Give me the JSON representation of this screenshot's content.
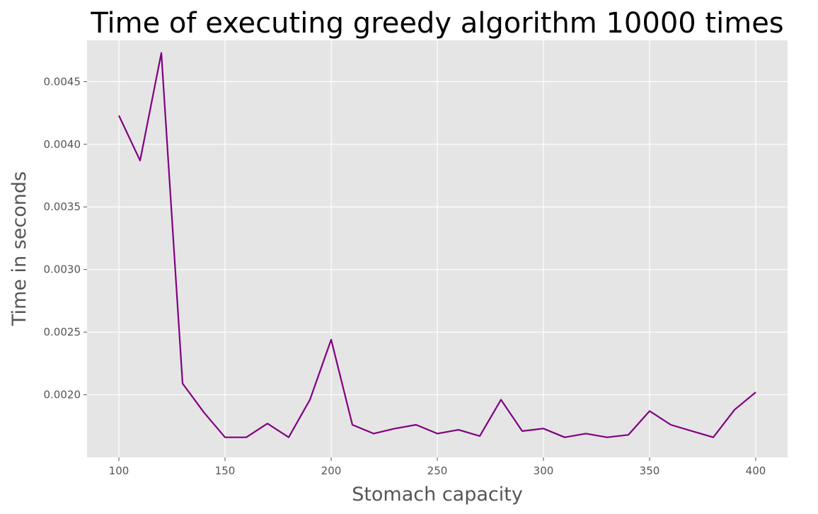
{
  "chart_data": {
    "type": "line",
    "title": "Time of executing greedy algorithm 10000 times",
    "xlabel": "Stomach capacity",
    "ylabel": "Time in seconds",
    "xlim": [
      85,
      415
    ],
    "ylim": [
      0.0015,
      0.00483
    ],
    "x_ticks": [
      100,
      150,
      200,
      250,
      300,
      350,
      400
    ],
    "x_tick_labels": [
      "100",
      "150",
      "200",
      "250",
      "300",
      "350",
      "400"
    ],
    "y_ticks": [
      0.002,
      0.0025,
      0.003,
      0.0035,
      0.004,
      0.0045
    ],
    "y_tick_labels": [
      "0.0020",
      "0.0025",
      "0.0030",
      "0.0035",
      "0.0040",
      "0.0045"
    ],
    "grid": true,
    "series": [
      {
        "color": "#800080",
        "x": [
          100,
          110,
          120,
          130,
          140,
          150,
          160,
          170,
          180,
          190,
          200,
          210,
          220,
          230,
          240,
          250,
          260,
          270,
          280,
          290,
          300,
          310,
          320,
          330,
          340,
          350,
          360,
          370,
          380,
          390,
          400
        ],
        "y": [
          0.00423,
          0.00387,
          0.00473,
          0.00209,
          0.00186,
          0.00166,
          0.00166,
          0.00177,
          0.00166,
          0.00196,
          0.00244,
          0.00176,
          0.00169,
          0.00173,
          0.00176,
          0.00169,
          0.00172,
          0.00167,
          0.00196,
          0.00171,
          0.00173,
          0.00166,
          0.00169,
          0.00166,
          0.00168,
          0.00187,
          0.00176,
          0.00171,
          0.00166,
          0.00188,
          0.00202
        ]
      }
    ]
  }
}
